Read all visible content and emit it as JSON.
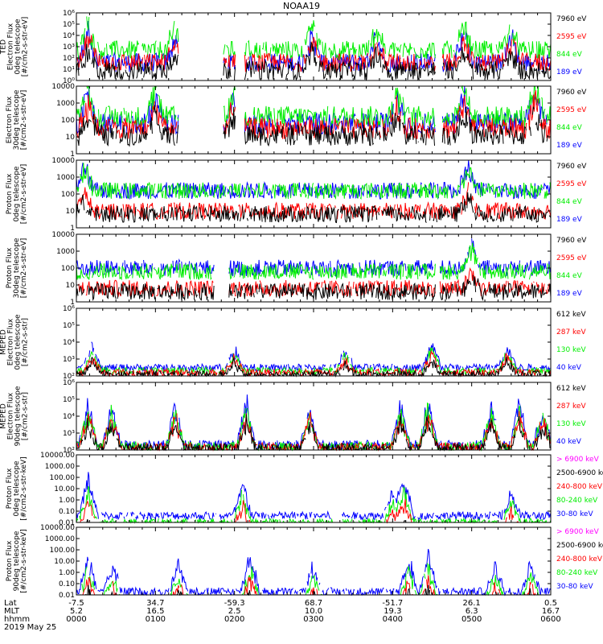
{
  "title": "NOAA19",
  "colors": {
    "blue": "#0000ff",
    "green": "#00ee00",
    "red": "#ff0000",
    "black": "#000000",
    "magenta": "#ff00ff"
  },
  "time_axis": {
    "rows": [
      {
        "name": "Lat",
        "values": [
          "-7.5",
          "34.7",
          "-59.3",
          "68.7",
          "-51.7",
          "26.1",
          "0.5"
        ]
      },
      {
        "name": "MLT",
        "values": [
          "5.2",
          "16.5",
          "2.5",
          "10.0",
          "19.3",
          "6.3",
          "16.7"
        ]
      },
      {
        "name": "hhmm",
        "values": [
          "0000",
          "0100",
          "0200",
          "0300",
          "0400",
          "0500",
          "0600"
        ]
      }
    ],
    "row_labels": [
      "Lat",
      "MLT",
      "hhmm"
    ],
    "date": "2019 May 25"
  },
  "chart_data": [
    {
      "type": "line",
      "panel": "TED electron 0deg",
      "ylabel": [
        "TED",
        "Electron Flux",
        "0deg telescope",
        "[#/cm2-s-str-eV]"
      ],
      "yscale": "log",
      "ylim": [
        1,
        1000000
      ],
      "yticks": [
        "10⁰",
        "10¹",
        "10²",
        "10³",
        "10⁴",
        "10⁵",
        "10⁶"
      ],
      "legend": [
        {
          "label": "7960 eV",
          "color": "black"
        },
        {
          "label": "2595 eV",
          "color": "red"
        },
        {
          "label": "844 eV",
          "color": "green"
        },
        {
          "label": "189 eV",
          "color": "blue"
        }
      ],
      "series_order": [
        "blue",
        "green",
        "red",
        "black"
      ],
      "gaps": [
        [
          1.3,
          1.85
        ],
        [
          2.02,
          2.12
        ],
        [
          4.55,
          4.62
        ]
      ],
      "bursts": [
        [
          0.15,
          2.8
        ],
        [
          1.25,
          2.4
        ],
        [
          2.98,
          2.6
        ],
        [
          3.8,
          2.5
        ],
        [
          4.9,
          2.6
        ],
        [
          5.5,
          2.3
        ]
      ],
      "base": [
        1.6,
        2.7,
        1.6,
        0.9
      ],
      "noise": 1.2
    },
    {
      "type": "line",
      "panel": "TED electron 30deg",
      "ylabel": [
        "Electron Flux",
        "30deg telescope",
        "[#/cm2-s-str-eV]"
      ],
      "yscale": "log",
      "ylim": [
        1,
        10000
      ],
      "yticks": [
        "1",
        "10",
        "100",
        "1000",
        "10000"
      ],
      "legend": [
        {
          "label": "7960 eV",
          "color": "black"
        },
        {
          "label": "2595 eV",
          "color": "red"
        },
        {
          "label": "844 eV",
          "color": "green"
        },
        {
          "label": "189 eV",
          "color": "blue"
        }
      ],
      "series_order": [
        "blue",
        "green",
        "red",
        "black"
      ],
      "gaps": [
        [
          1.3,
          1.85
        ],
        [
          2.02,
          2.12
        ],
        [
          4.55,
          4.62
        ]
      ],
      "bursts": [
        [
          0.15,
          2.2
        ],
        [
          1.0,
          1.9
        ],
        [
          2.0,
          1.8
        ],
        [
          4.05,
          1.8
        ],
        [
          4.9,
          2.0
        ],
        [
          5.8,
          2.0
        ]
      ],
      "base": [
        1.8,
        2.2,
        1.5,
        1.1
      ],
      "noise": 0.9
    },
    {
      "type": "line",
      "panel": "TED proton 0deg",
      "ylabel": [
        "Proton Flux",
        "0deg telescope",
        "[#/cm2-s-str-eV]"
      ],
      "yscale": "log",
      "ylim": [
        1,
        10000
      ],
      "yticks": [
        "1",
        "10",
        "100",
        "1000",
        "10000"
      ],
      "legend": [
        {
          "label": "7960 eV",
          "color": "black"
        },
        {
          "label": "2595 eV",
          "color": "red"
        },
        {
          "label": "844 eV",
          "color": "green"
        },
        {
          "label": "189 eV",
          "color": "blue"
        }
      ],
      "series_order": [
        "blue",
        "green",
        "red",
        "black"
      ],
      "gaps": [],
      "bursts": [
        [
          0.1,
          1.5
        ],
        [
          4.95,
          1.5
        ]
      ],
      "base": [
        2.2,
        2.2,
        1.0,
        0.8
      ],
      "noise": 0.7
    },
    {
      "type": "line",
      "panel": "TED proton 30deg",
      "ylabel": [
        "Proton Flux",
        "30deg telescope",
        "[#/cm2-s-str-eV]"
      ],
      "yscale": "log",
      "ylim": [
        1,
        10000
      ],
      "yticks": [
        "1",
        "10",
        "100",
        "1000",
        "10000"
      ],
      "legend": [
        {
          "label": "7960 eV",
          "color": "black"
        },
        {
          "label": "2595 eV",
          "color": "red"
        },
        {
          "label": "844 eV",
          "color": "green"
        },
        {
          "label": "189 eV",
          "color": "blue"
        }
      ],
      "series_order": [
        "blue",
        "green",
        "red",
        "black"
      ],
      "gaps": [
        [
          1.75,
          1.92
        ],
        [
          4.55,
          4.6
        ]
      ],
      "bursts": [
        [
          5.0,
          1.4
        ]
      ],
      "base": [
        2.0,
        1.8,
        0.8,
        0.6
      ],
      "noise": 0.7
    },
    {
      "type": "line",
      "panel": "MEPED electron 0deg",
      "ylabel": [
        "MEPED",
        "Electron Flux",
        "0deg telescope",
        "[#/cm2-s-str]"
      ],
      "yscale": "log",
      "ylim": [
        100,
        1000000
      ],
      "yticks": [
        "10²",
        "10³",
        "10⁴",
        "10⁵",
        "10⁶"
      ],
      "legend": [
        {
          "label": "612 keV",
          "color": "black"
        },
        {
          "label": "287 keV",
          "color": "red"
        },
        {
          "label": "130 keV",
          "color": "green"
        },
        {
          "label": "40 keV",
          "color": "blue"
        }
      ],
      "series_order": [
        "blue",
        "green",
        "red",
        "black"
      ],
      "gaps": [],
      "bursts": [
        [
          0.2,
          1.3
        ],
        [
          2.0,
          1.1
        ],
        [
          3.4,
          1.0
        ],
        [
          4.5,
          1.5
        ],
        [
          5.45,
          1.3
        ]
      ],
      "base": [
        0.5,
        0.3,
        0.2,
        0.1
      ],
      "noise": 0.3
    },
    {
      "type": "line",
      "panel": "MEPED electron 90deg",
      "ylabel": [
        "MEPED",
        "Electron Flux",
        "90deg telescope",
        "[#/cm2-s-str]"
      ],
      "yscale": "log",
      "ylim": [
        100,
        1000000
      ],
      "yticks": [
        "10²",
        "10³",
        "10⁴",
        "10⁵",
        "10⁶"
      ],
      "legend": [
        {
          "label": "612 keV",
          "color": "black"
        },
        {
          "label": "287 keV",
          "color": "red"
        },
        {
          "label": "130 keV",
          "color": "green"
        },
        {
          "label": "40 keV",
          "color": "blue"
        }
      ],
      "series_order": [
        "blue",
        "green",
        "red",
        "black"
      ],
      "gaps": [],
      "bursts": [
        [
          0.15,
          2.5
        ],
        [
          0.45,
          2.4
        ],
        [
          1.25,
          2.4
        ],
        [
          2.15,
          2.6
        ],
        [
          2.95,
          2.4
        ],
        [
          4.1,
          2.4
        ],
        [
          4.45,
          2.6
        ],
        [
          5.25,
          2.2
        ],
        [
          5.6,
          2.5
        ],
        [
          5.9,
          2.2
        ]
      ],
      "base": [
        0.3,
        0.2,
        0.15,
        0.1
      ],
      "noise": 0.4
    },
    {
      "type": "line",
      "panel": "MEPED proton 0deg",
      "ylabel": [
        "Proton Flux",
        "0deg telescope",
        "[#/cm2-s-str-keV]"
      ],
      "yscale": "log",
      "ylim": [
        0.01,
        10000
      ],
      "yticks": [
        "0.01",
        "0.10",
        "1.00",
        "10.00",
        "100.00",
        "1000.00",
        "10000.00"
      ],
      "legend": [
        {
          "label": "> 6900 keV",
          "color": "magenta"
        },
        {
          "label": "2500-6900 keV",
          "color": "black"
        },
        {
          "label": "240-800 keV",
          "color": "red"
        },
        {
          "label": "80-240 keV",
          "color": "green"
        },
        {
          "label": "30-80 keV",
          "color": "blue"
        }
      ],
      "series_order": [
        "blue",
        "green",
        "red",
        "black",
        "magenta"
      ],
      "gaps": [
        [
          3.25,
          3.35
        ]
      ],
      "bursts": [
        [
          0.15,
          3.5
        ],
        [
          2.1,
          3.0
        ],
        [
          4.0,
          2.2
        ],
        [
          4.15,
          3.3
        ],
        [
          5.5,
          2.2
        ]
      ],
      "base": [
        0.6,
        0.0,
        -0.6,
        -2.2,
        -2.5
      ],
      "noise": 0.5
    },
    {
      "type": "line",
      "panel": "MEPED proton 90deg",
      "ylabel": [
        "Proton Flux",
        "90deg telescope",
        "[#/cm2-s-str-keV]"
      ],
      "yscale": "log",
      "ylim": [
        0.01,
        10000
      ],
      "yticks": [
        "0.01",
        "0.10",
        "1.00",
        "10.00",
        "100.00",
        "1000.00",
        "10000.00"
      ],
      "legend": [
        {
          "label": "> 6900 keV",
          "color": "magenta"
        },
        {
          "label": "2500-6900 keV",
          "color": "black"
        },
        {
          "label": "240-800 keV",
          "color": "red"
        },
        {
          "label": "80-240 keV",
          "color": "green"
        },
        {
          "label": "30-80 keV",
          "color": "blue"
        }
      ],
      "series_order": [
        "blue",
        "green",
        "red",
        "black",
        "magenta"
      ],
      "gaps": [],
      "bursts": [
        [
          0.15,
          3.2
        ],
        [
          0.45,
          2.5
        ],
        [
          1.3,
          2.8
        ],
        [
          2.2,
          3.3
        ],
        [
          3.0,
          2.5
        ],
        [
          4.2,
          3.0
        ],
        [
          4.45,
          3.3
        ],
        [
          5.3,
          2.5
        ],
        [
          5.75,
          2.7
        ]
      ],
      "base": [
        0.3,
        -0.4,
        -1.0,
        -1.6,
        -2.5
      ],
      "noise": 0.5
    }
  ]
}
